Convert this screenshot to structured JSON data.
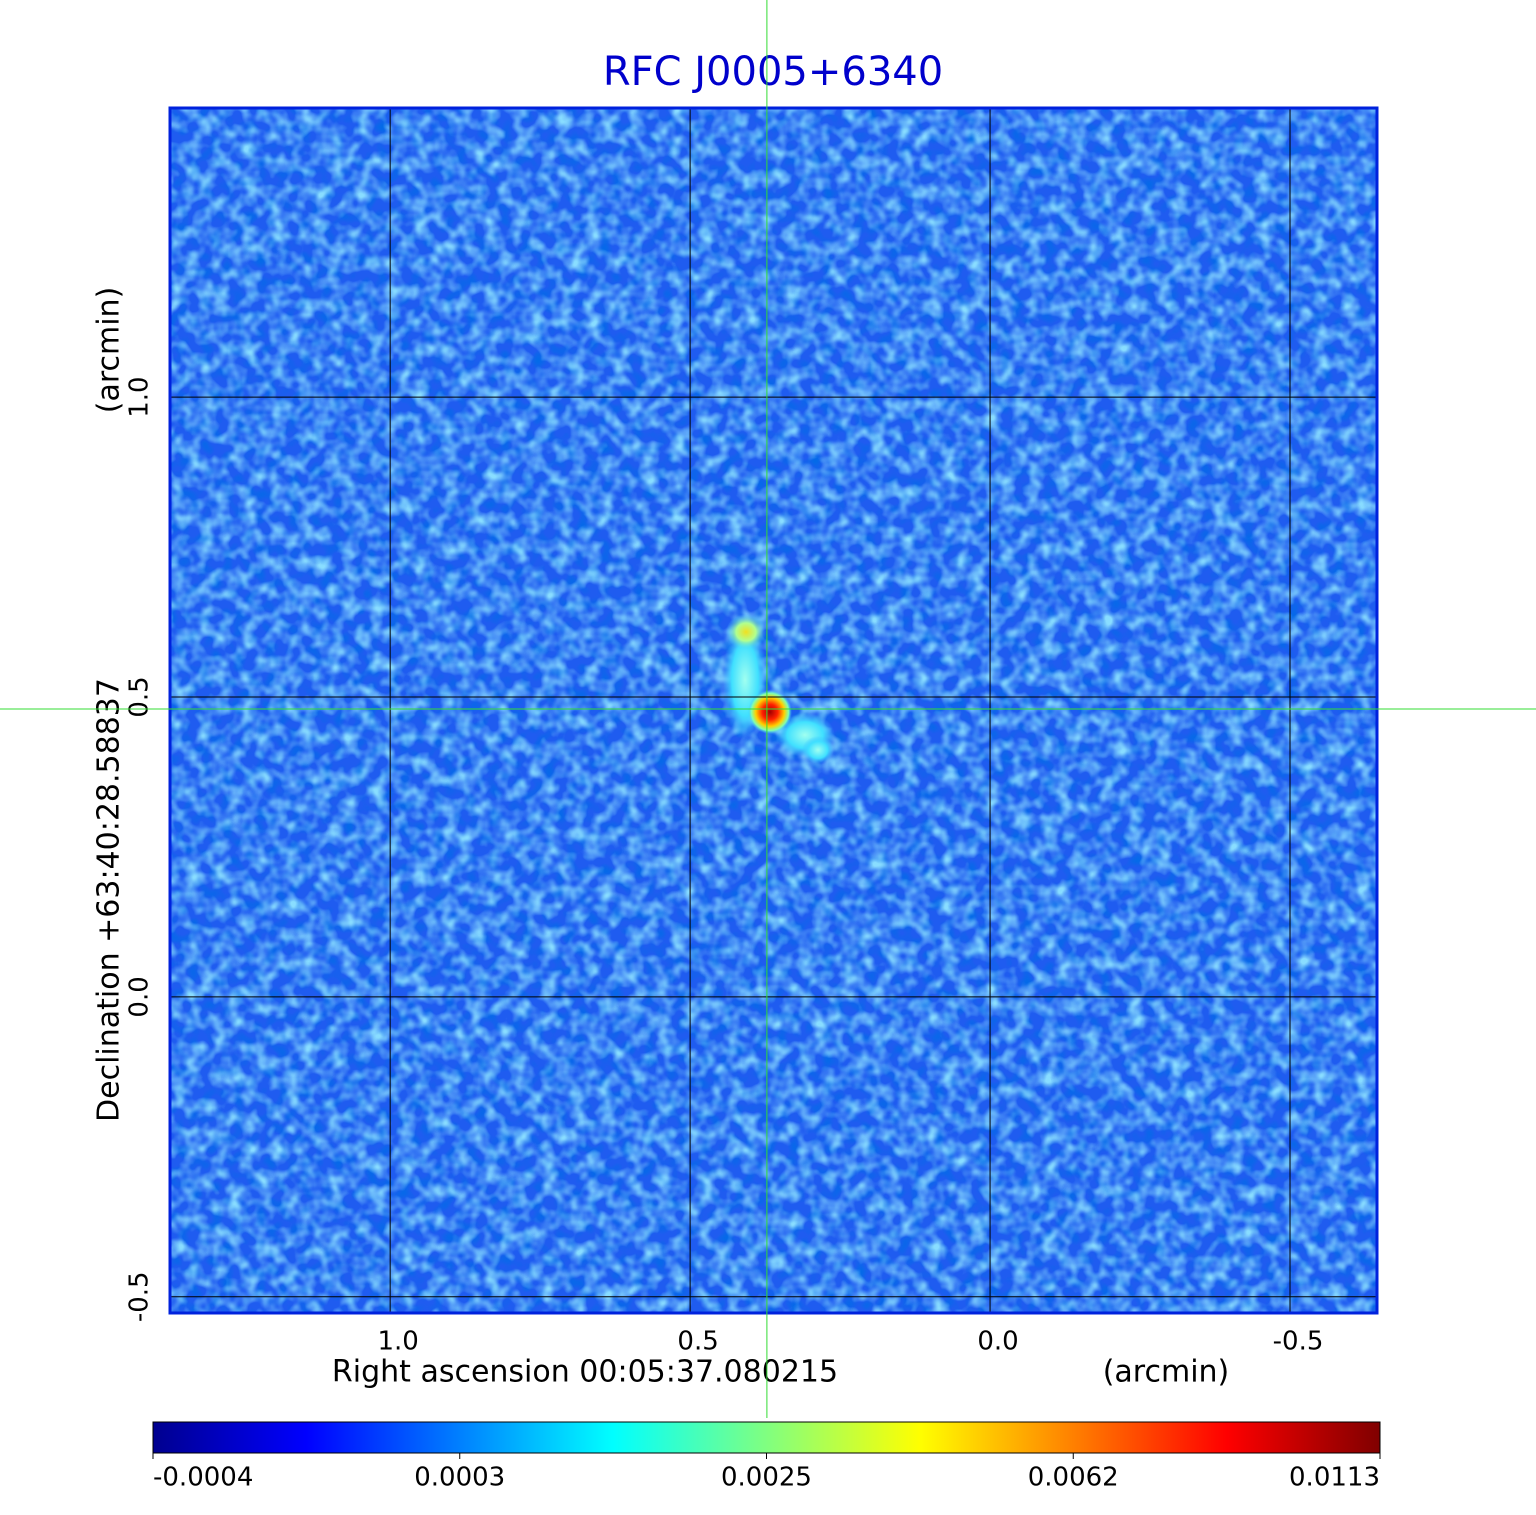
{
  "chart_data": {
    "type": "image",
    "title": "RFC J0005+6340",
    "x_label": "Right ascension  00:05:37.080215",
    "x_unit": "(arcmin)",
    "y_label": "Declination  +63:40:28.58837",
    "y_unit": "(arcmin)",
    "xlim": [
      1.367,
      -0.645
    ],
    "ylim": [
      -0.527,
      1.482
    ],
    "xticks": [
      {
        "value": 1,
        "label": "1.0"
      },
      0.5,
      {
        "value": 0,
        "label": "0.0"
      },
      -0.5
    ],
    "yticks": [
      -0.5,
      {
        "value": 0,
        "label": "0.0"
      },
      0.5,
      {
        "value": 1,
        "label": "1.0"
      }
    ],
    "grid": true,
    "crosshair": [
      0.372,
      0.48
    ],
    "colorbar": {
      "ticks": [
        {
          "value": -0.0004,
          "label": "-0.0004"
        },
        0.0003,
        0.0025,
        0.0062,
        0.0113
      ],
      "colormap": [
        "#00008f",
        "#0000ff",
        "#0080ff",
        "#00ffff",
        "#80ff80",
        "#ffff00",
        "#ff8000",
        "#ff0000",
        "#800000"
      ]
    }
  }
}
